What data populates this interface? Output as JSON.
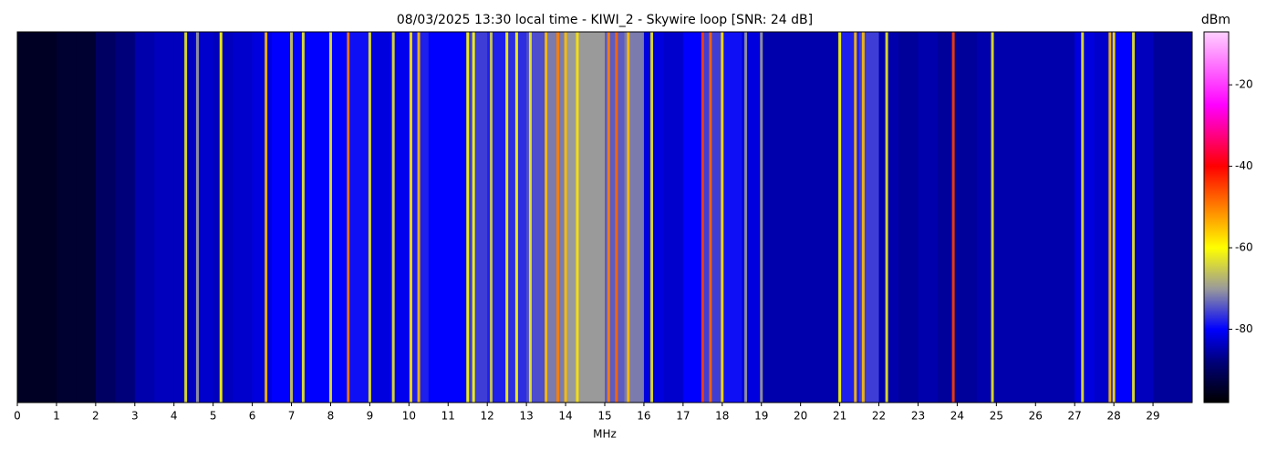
{
  "chart_data": {
    "type": "waterfall",
    "title": "08/03/2025 13:30 local time - KIWI_2 - Skywire loop [SNR: 24 dB]",
    "x_label": "MHz",
    "colorbar_label": "dBm",
    "xlim": [
      0,
      30
    ],
    "xticks": [
      0,
      1,
      2,
      3,
      4,
      5,
      6,
      7,
      8,
      9,
      10,
      11,
      12,
      13,
      14,
      15,
      16,
      17,
      18,
      19,
      20,
      21,
      22,
      23,
      24,
      25,
      26,
      27,
      28,
      29
    ],
    "clim": [
      -98,
      -7
    ],
    "cticks": [
      -20,
      -40,
      -60,
      -80
    ],
    "colormap": [
      {
        "value": -98,
        "color": "#000000"
      },
      {
        "value": -88,
        "color": "#00007a"
      },
      {
        "value": -80,
        "color": "#0000ff"
      },
      {
        "value": -70,
        "color": "#9a9a9a"
      },
      {
        "value": -60,
        "color": "#ffff00"
      },
      {
        "value": -40,
        "color": "#ff0000"
      },
      {
        "value": -25,
        "color": "#ff00ff"
      },
      {
        "value": -7,
        "color": "#ffd0ff"
      }
    ],
    "bins": [
      0,
      0.5,
      1,
      1.5,
      2,
      2.5,
      3,
      3.5,
      4,
      4.5,
      5,
      5.5,
      6,
      6.5,
      7,
      7.5,
      8,
      8.5,
      9,
      9.5,
      10,
      10.5,
      11,
      11.5,
      12,
      12.5,
      13,
      13.5,
      14,
      14.5,
      15,
      15.5,
      16,
      16.5,
      17,
      17.5,
      18,
      18.5,
      19,
      19.5,
      20,
      20.5,
      21,
      21.5,
      22,
      22.5,
      23,
      23.5,
      24,
      24.5,
      25,
      25.5,
      26,
      26.5,
      27,
      27.5,
      28,
      28.5,
      29,
      29.5,
      30
    ],
    "band_levels": [
      -95,
      -95,
      -94,
      -94,
      -90,
      -88,
      -85,
      -84,
      -84,
      -83,
      -84,
      -83,
      -82,
      -80,
      -80,
      -80,
      -80,
      -79,
      -82,
      -81,
      -78,
      -80,
      -80,
      -76,
      -78,
      -77,
      -75,
      -72,
      -70,
      -70,
      -74,
      -72,
      -82,
      -83,
      -80,
      -76,
      -79,
      -82,
      -85,
      -85,
      -85,
      -85,
      -78,
      -76,
      -85,
      -86,
      -85,
      -86,
      -86,
      -85,
      -85,
      -85,
      -85,
      -85,
      -82,
      -83,
      -80,
      -84,
      -86,
      -86
    ],
    "signals": {
      "x": [
        4.3,
        4.6,
        5.2,
        6.35,
        7.0,
        7.3,
        8.0,
        8.45,
        9.0,
        9.6,
        10.05,
        10.25,
        11.5,
        11.65,
        12.1,
        12.5,
        12.75,
        13.1,
        13.5,
        13.8,
        14.0,
        14.3,
        15.1,
        15.3,
        15.6,
        16.2,
        17.5,
        17.7,
        18.0,
        18.6,
        19.0,
        21.0,
        21.4,
        21.6,
        22.2,
        23.9,
        24.9,
        27.2,
        27.9,
        28.0,
        28.5
      ],
      "values": [
        -62,
        -70,
        -60,
        -55,
        -65,
        -62,
        -62,
        -50,
        -62,
        -62,
        -58,
        -55,
        -60,
        -60,
        -65,
        -60,
        -60,
        -62,
        -55,
        -50,
        -55,
        -58,
        -50,
        -48,
        -55,
        -62,
        -45,
        -48,
        -58,
        -70,
        -70,
        -60,
        -55,
        -55,
        -62,
        -45,
        -62,
        -62,
        -55,
        -58,
        -62
      ]
    }
  }
}
